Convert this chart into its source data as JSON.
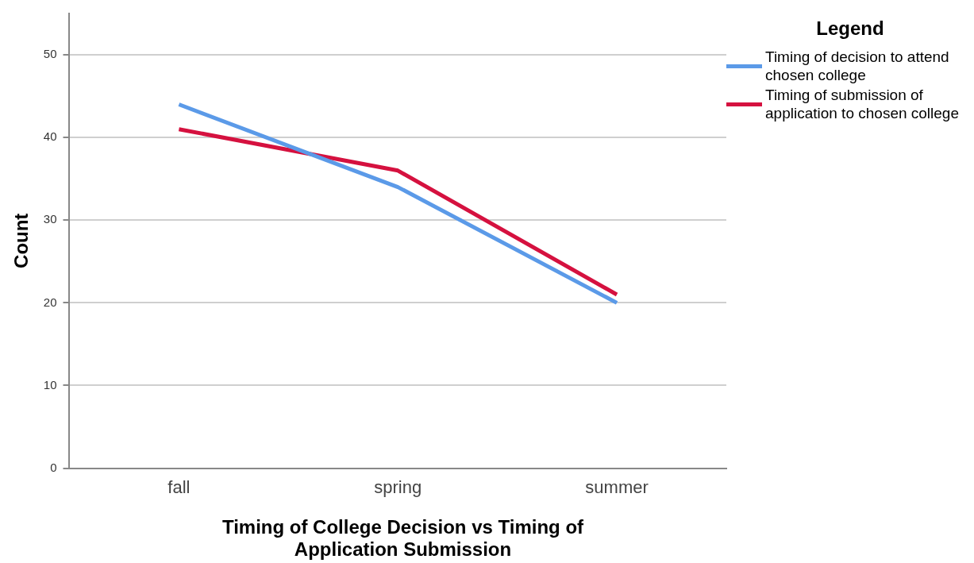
{
  "chart_data": {
    "type": "line",
    "xlabel": "Timing of College Decision vs Timing of Application Submission",
    "ylabel": "Count",
    "legend_title": "Legend",
    "legend": "top right",
    "grid": "y",
    "marker": "none",
    "line_style": "solid",
    "categories": [
      "fall",
      "spring",
      "summer"
    ],
    "ylim": [
      0,
      55
    ],
    "yticks": [
      0,
      10,
      20,
      30,
      40,
      50
    ],
    "series": [
      {
        "name": "Timing of decision to attend chosen college",
        "color": "#5b9ae8",
        "values": [
          44,
          34,
          20
        ]
      },
      {
        "name": "Timing of submission of application to chosen college",
        "color": "#d5113f",
        "values": [
          41,
          36,
          21
        ]
      }
    ]
  }
}
